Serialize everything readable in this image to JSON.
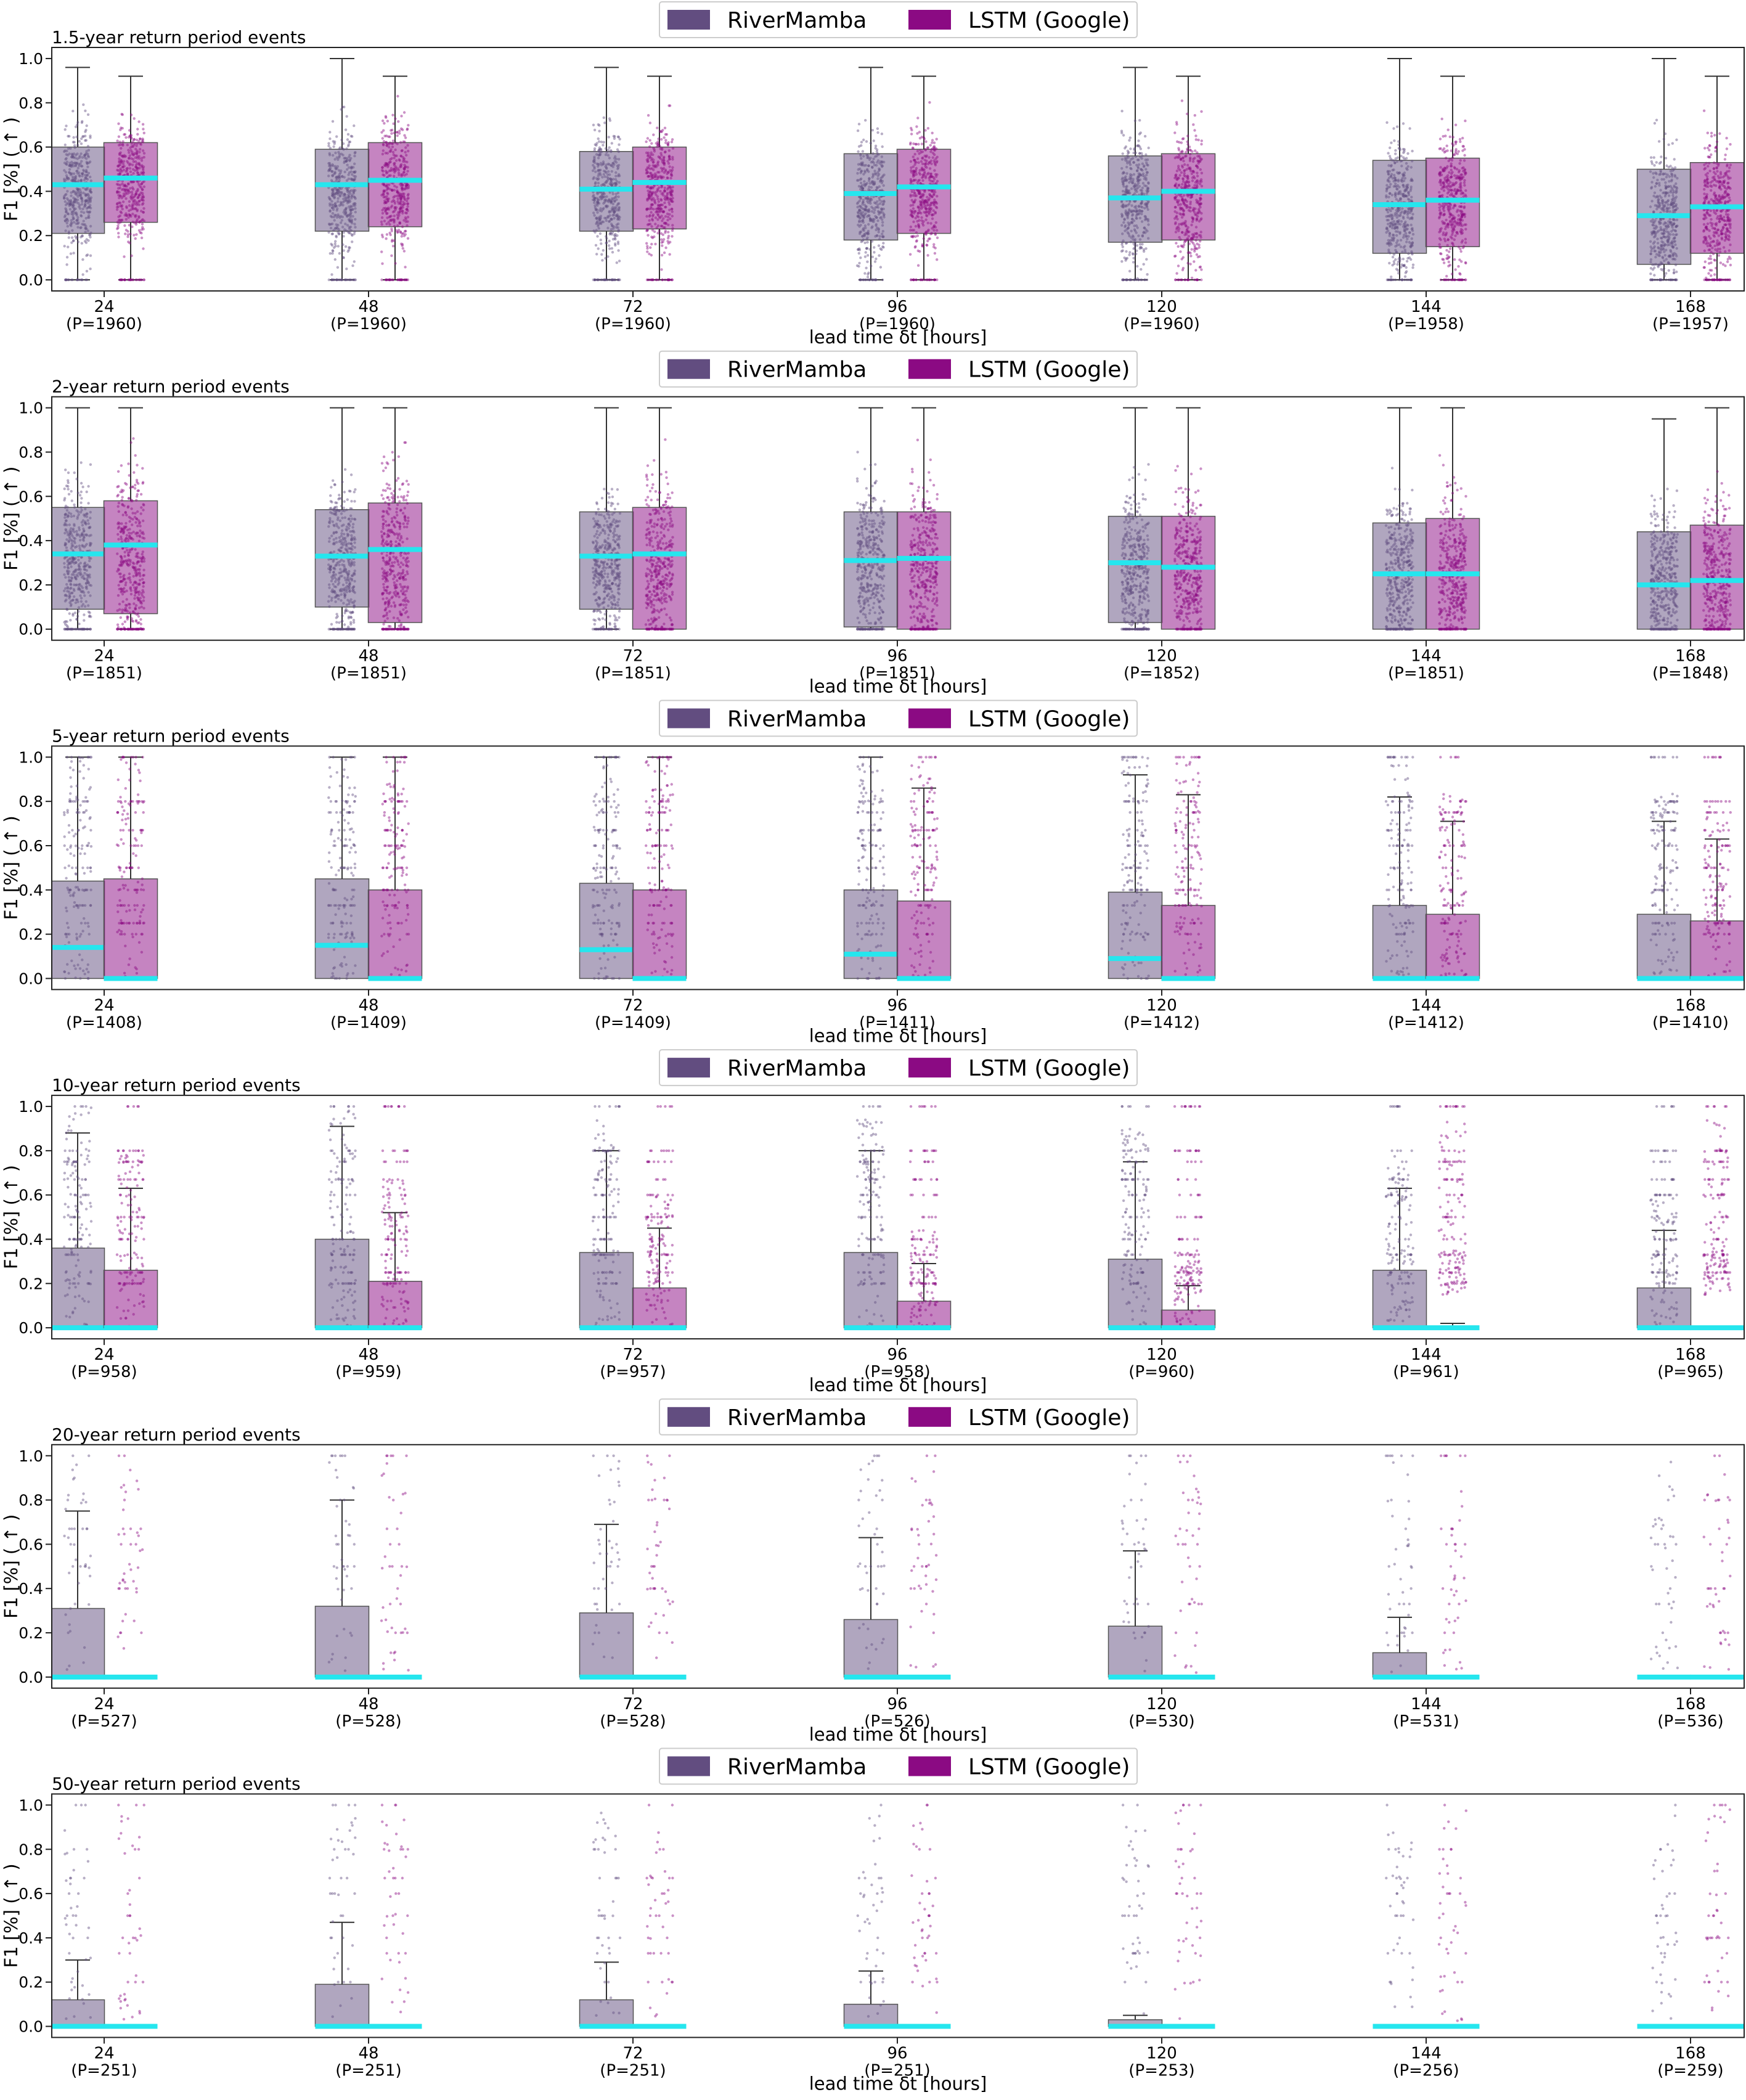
{
  "colors": {
    "rivermamba": "#624d80",
    "lstm": "#8b0a83",
    "median": "#25e6ee",
    "whisker": "#333333",
    "axis": "#222222"
  },
  "legend": {
    "series": [
      "RiverMamba",
      "LSTM (Google)"
    ]
  },
  "chart_data": [
    {
      "type": "box",
      "title": "1.5-year return period events",
      "xlabel": "lead time δt [hours]",
      "ylabel": "F1 [%] ( ↑ )",
      "ylim": [
        -0.05,
        1.05
      ],
      "yticks": [
        "0.0",
        "0.2",
        "0.4",
        "0.6",
        "0.8",
        "1.0"
      ],
      "categories": [
        "24",
        "48",
        "72",
        "96",
        "120",
        "144",
        "168"
      ],
      "counts": [
        "(P=1960)",
        "(P=1960)",
        "(P=1960)",
        "(P=1960)",
        "(P=1960)",
        "(P=1958)",
        "(P=1957)"
      ],
      "scatter_style": "continuous",
      "series": [
        {
          "name": "RiverMamba",
          "q1": [
            0.21,
            0.22,
            0.22,
            0.18,
            0.17,
            0.12,
            0.07
          ],
          "median": [
            0.43,
            0.43,
            0.41,
            0.39,
            0.37,
            0.34,
            0.29
          ],
          "q3": [
            0.6,
            0.59,
            0.58,
            0.57,
            0.56,
            0.54,
            0.5
          ],
          "whisker_high": [
            0.96,
            1.0,
            0.96,
            0.96,
            0.96,
            1.0,
            1.0
          ],
          "whisker_low": [
            0,
            0,
            0,
            0,
            0,
            0,
            0
          ]
        },
        {
          "name": "LSTM (Google)",
          "q1": [
            0.26,
            0.24,
            0.23,
            0.21,
            0.18,
            0.15,
            0.12
          ],
          "median": [
            0.46,
            0.45,
            0.44,
            0.42,
            0.4,
            0.36,
            0.33
          ],
          "q3": [
            0.62,
            0.62,
            0.6,
            0.59,
            0.57,
            0.55,
            0.53
          ],
          "whisker_high": [
            0.92,
            0.92,
            0.92,
            0.92,
            0.92,
            0.92,
            0.92
          ],
          "whisker_low": [
            0,
            0,
            0,
            0,
            0,
            0,
            0
          ]
        }
      ]
    },
    {
      "type": "box",
      "title": "2-year return period events",
      "xlabel": "lead time δt [hours]",
      "ylabel": "F1 [%] ( ↑ )",
      "ylim": [
        -0.05,
        1.05
      ],
      "yticks": [
        "0.0",
        "0.2",
        "0.4",
        "0.6",
        "0.8",
        "1.0"
      ],
      "categories": [
        "24",
        "48",
        "72",
        "96",
        "120",
        "144",
        "168"
      ],
      "counts": [
        "(P=1851)",
        "(P=1851)",
        "(P=1851)",
        "(P=1851)",
        "(P=1852)",
        "(P=1851)",
        "(P=1848)"
      ],
      "scatter_style": "continuous",
      "series": [
        {
          "name": "RiverMamba",
          "q1": [
            0.09,
            0.1,
            0.09,
            0.01,
            0.03,
            0.0,
            0.0
          ],
          "median": [
            0.34,
            0.33,
            0.33,
            0.31,
            0.3,
            0.25,
            0.2
          ],
          "q3": [
            0.55,
            0.54,
            0.53,
            0.53,
            0.51,
            0.48,
            0.44
          ],
          "whisker_high": [
            1.0,
            1.0,
            1.0,
            1.0,
            1.0,
            1.0,
            0.95
          ],
          "whisker_low": [
            0,
            0,
            0,
            0,
            0,
            0,
            0
          ]
        },
        {
          "name": "LSTM (Google)",
          "q1": [
            0.07,
            0.03,
            0.0,
            0.0,
            0.0,
            0.0,
            0.0
          ],
          "median": [
            0.38,
            0.36,
            0.34,
            0.32,
            0.28,
            0.25,
            0.22
          ],
          "q3": [
            0.58,
            0.57,
            0.55,
            0.53,
            0.51,
            0.5,
            0.47
          ],
          "whisker_high": [
            1.0,
            1.0,
            1.0,
            1.0,
            1.0,
            1.0,
            1.0
          ],
          "whisker_low": [
            0,
            0,
            0,
            0,
            0,
            0,
            0
          ]
        }
      ]
    },
    {
      "type": "box",
      "title": "5-year return period events",
      "xlabel": "lead time δt [hours]",
      "ylabel": "F1 [%] ( ↑ )",
      "ylim": [
        -0.05,
        1.05
      ],
      "yticks": [
        "0.0",
        "0.2",
        "0.4",
        "0.6",
        "0.8",
        "1.0"
      ],
      "categories": [
        "24",
        "48",
        "72",
        "96",
        "120",
        "144",
        "168"
      ],
      "counts": [
        "(P=1408)",
        "(P=1409)",
        "(P=1409)",
        "(P=1411)",
        "(P=1412)",
        "(P=1412)",
        "(P=1410)"
      ],
      "scatter_style": "discrete",
      "series": [
        {
          "name": "RiverMamba",
          "q1": [
            0,
            0,
            0,
            0,
            0,
            0,
            0
          ],
          "median": [
            0.14,
            0.15,
            0.13,
            0.11,
            0.09,
            0.0,
            0.0
          ],
          "q3": [
            0.44,
            0.45,
            0.43,
            0.4,
            0.39,
            0.33,
            0.29
          ],
          "whisker_high": [
            1.0,
            1.0,
            1.0,
            1.0,
            0.92,
            0.82,
            0.71
          ],
          "whisker_low": [
            0,
            0,
            0,
            0,
            0,
            0,
            0
          ]
        },
        {
          "name": "LSTM (Google)",
          "q1": [
            0,
            0,
            0,
            0,
            0,
            0,
            0
          ],
          "median": [
            0.0,
            0.0,
            0.0,
            0.0,
            0.0,
            0.0,
            0.0
          ],
          "q3": [
            0.45,
            0.4,
            0.4,
            0.35,
            0.33,
            0.29,
            0.26
          ],
          "whisker_high": [
            1.0,
            1.0,
            1.0,
            0.86,
            0.83,
            0.71,
            0.63
          ],
          "whisker_low": [
            0,
            0,
            0,
            0,
            0,
            0,
            0
          ]
        }
      ]
    },
    {
      "type": "box",
      "title": "10-year return period events",
      "xlabel": "lead time δt [hours]",
      "ylabel": "F1 [%] ( ↑ )",
      "ylim": [
        -0.05,
        1.05
      ],
      "yticks": [
        "0.0",
        "0.2",
        "0.4",
        "0.6",
        "0.8",
        "1.0"
      ],
      "categories": [
        "24",
        "48",
        "72",
        "96",
        "120",
        "144",
        "168"
      ],
      "counts": [
        "(P=958)",
        "(P=959)",
        "(P=957)",
        "(P=958)",
        "(P=960)",
        "(P=961)",
        "(P=965)"
      ],
      "scatter_style": "discrete",
      "series": [
        {
          "name": "RiverMamba",
          "q1": [
            0,
            0,
            0,
            0,
            0,
            0,
            0
          ],
          "median": [
            0,
            0,
            0,
            0,
            0,
            0,
            0
          ],
          "q3": [
            0.36,
            0.4,
            0.34,
            0.34,
            0.31,
            0.26,
            0.18
          ],
          "whisker_high": [
            0.88,
            0.91,
            0.8,
            0.8,
            0.75,
            0.63,
            0.44
          ],
          "whisker_low": [
            0,
            0,
            0,
            0,
            0,
            0,
            0
          ]
        },
        {
          "name": "LSTM (Google)",
          "q1": [
            0,
            0,
            0,
            0,
            0,
            0,
            0
          ],
          "median": [
            0,
            0,
            0,
            0,
            0,
            0,
            0
          ],
          "q3": [
            0.26,
            0.21,
            0.18,
            0.12,
            0.08,
            0.0,
            0.0
          ],
          "whisker_high": [
            0.63,
            0.52,
            0.45,
            0.29,
            0.19,
            0.02,
            0.0
          ],
          "whisker_low": [
            0,
            0,
            0,
            0,
            0,
            0,
            0
          ]
        }
      ]
    },
    {
      "type": "box",
      "title": "20-year return period events",
      "xlabel": "lead time δt [hours]",
      "ylabel": "F1 [%] ( ↑ )",
      "ylim": [
        -0.05,
        1.05
      ],
      "yticks": [
        "0.0",
        "0.2",
        "0.4",
        "0.6",
        "0.8",
        "1.0"
      ],
      "categories": [
        "24",
        "48",
        "72",
        "96",
        "120",
        "144",
        "168"
      ],
      "counts": [
        "(P=527)",
        "(P=528)",
        "(P=528)",
        "(P=526)",
        "(P=530)",
        "(P=531)",
        "(P=536)"
      ],
      "scatter_style": "sparse",
      "series": [
        {
          "name": "RiverMamba",
          "q1": [
            0,
            0,
            0,
            0,
            0,
            0,
            0
          ],
          "median": [
            0,
            0,
            0,
            0,
            0,
            0,
            0
          ],
          "q3": [
            0.31,
            0.32,
            0.29,
            0.26,
            0.23,
            0.11,
            0.0
          ],
          "whisker_high": [
            0.75,
            0.8,
            0.69,
            0.63,
            0.57,
            0.27,
            0.0
          ],
          "whisker_low": [
            0,
            0,
            0,
            0,
            0,
            0,
            0
          ]
        },
        {
          "name": "LSTM (Google)",
          "q1": [
            0,
            0,
            0,
            0,
            0,
            0,
            0
          ],
          "median": [
            0,
            0,
            0,
            0,
            0,
            0,
            0
          ],
          "q3": [
            0,
            0,
            0,
            0,
            0,
            0,
            0
          ],
          "whisker_high": [
            0,
            0,
            0,
            0,
            0,
            0,
            0
          ],
          "whisker_low": [
            0,
            0,
            0,
            0,
            0,
            0,
            0
          ]
        }
      ]
    },
    {
      "type": "box",
      "title": "50-year return period events",
      "xlabel": "lead time δt [hours]",
      "ylabel": "F1 [%] ( ↑ )",
      "ylim": [
        -0.05,
        1.05
      ],
      "yticks": [
        "0.0",
        "0.2",
        "0.4",
        "0.6",
        "0.8",
        "1.0"
      ],
      "categories": [
        "24",
        "48",
        "72",
        "96",
        "120",
        "144",
        "168"
      ],
      "counts": [
        "(P=251)",
        "(P=251)",
        "(P=251)",
        "(P=251)",
        "(P=253)",
        "(P=256)",
        "(P=259)"
      ],
      "scatter_style": "sparse",
      "series": [
        {
          "name": "RiverMamba",
          "q1": [
            0,
            0,
            0,
            0,
            0,
            0,
            0
          ],
          "median": [
            0,
            0,
            0,
            0,
            0,
            0,
            0
          ],
          "q3": [
            0.12,
            0.19,
            0.12,
            0.1,
            0.03,
            0.0,
            0.0
          ],
          "whisker_high": [
            0.3,
            0.47,
            0.29,
            0.25,
            0.05,
            0.0,
            0.0
          ],
          "whisker_low": [
            0,
            0,
            0,
            0,
            0,
            0,
            0
          ]
        },
        {
          "name": "LSTM (Google)",
          "q1": [
            0,
            0,
            0,
            0,
            0,
            0,
            0
          ],
          "median": [
            0,
            0,
            0,
            0,
            0,
            0,
            0
          ],
          "q3": [
            0,
            0,
            0,
            0,
            0,
            0,
            0
          ],
          "whisker_high": [
            0,
            0,
            0,
            0,
            0,
            0,
            0
          ],
          "whisker_low": [
            0,
            0,
            0,
            0,
            0,
            0,
            0
          ]
        }
      ]
    }
  ]
}
